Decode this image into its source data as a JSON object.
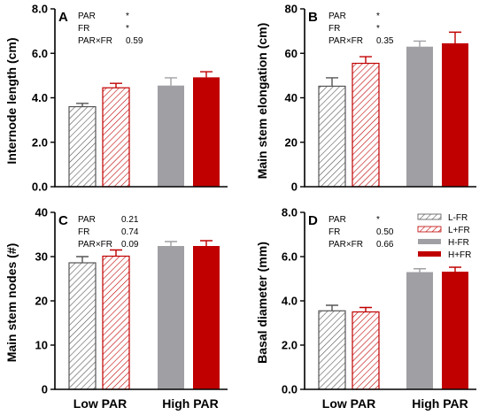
{
  "colors": {
    "L-FR": "#555555",
    "L+FR": "#c00000",
    "H-FR": "#a0a0a4",
    "H+FR": "#c00000"
  },
  "legend": {
    "placement": "top-right of panel D",
    "entries": [
      {
        "key": "L-FR",
        "label": "L-FR",
        "style": "hatched",
        "color": "#555555"
      },
      {
        "key": "L+FR",
        "label": "L+FR",
        "style": "hatched",
        "color": "#c00000"
      },
      {
        "key": "H-FR",
        "label": "H-FR",
        "style": "solid",
        "color": "#a0a0a4"
      },
      {
        "key": "H+FR",
        "label": "H+FR",
        "style": "solid",
        "color": "#c00000"
      }
    ]
  },
  "chart_data": [
    {
      "panel": "A",
      "type": "bar",
      "ylabel": "Internode length (cm)",
      "ylim": [
        0,
        8
      ],
      "yticks": [
        "0.0",
        "2.0",
        "4.0",
        "6.0",
        "8.0"
      ],
      "categories": [
        "Low PAR",
        "High PAR"
      ],
      "series": [
        {
          "key": "L-FR",
          "group": 0,
          "value": 3.6,
          "error": 0.15
        },
        {
          "key": "L+FR",
          "group": 0,
          "value": 4.45,
          "error": 0.2
        },
        {
          "key": "H-FR",
          "group": 1,
          "value": 4.55,
          "error": 0.35
        },
        {
          "key": "H+FR",
          "group": 1,
          "value": 4.92,
          "error": 0.25
        }
      ],
      "stats": [
        {
          "label": "PAR",
          "value": "*"
        },
        {
          "label": "FR",
          "value": "*"
        },
        {
          "label": "PAR×FR",
          "value": "0.59"
        }
      ]
    },
    {
      "panel": "B",
      "type": "bar",
      "ylabel": "Main stem elongation (cm)",
      "ylim": [
        0,
        80
      ],
      "yticks": [
        "0",
        "20",
        "40",
        "60",
        "80"
      ],
      "categories": [
        "Low PAR",
        "High PAR"
      ],
      "series": [
        {
          "key": "L-FR",
          "group": 0,
          "value": 45.2,
          "error": 3.8
        },
        {
          "key": "L+FR",
          "group": 0,
          "value": 55.5,
          "error": 3.0
        },
        {
          "key": "H-FR",
          "group": 1,
          "value": 63.0,
          "error": 2.5
        },
        {
          "key": "H+FR",
          "group": 1,
          "value": 64.5,
          "error": 5.0
        }
      ],
      "stats": [
        {
          "label": "PAR",
          "value": "*"
        },
        {
          "label": "FR",
          "value": "*"
        },
        {
          "label": "PAR×FR",
          "value": "0.35"
        }
      ]
    },
    {
      "panel": "C",
      "type": "bar",
      "ylabel": "Main stem nodes (#)",
      "ylim": [
        0,
        40
      ],
      "yticks": [
        "0",
        "10",
        "20",
        "30",
        "40"
      ],
      "categories": [
        "Low PAR",
        "High PAR"
      ],
      "series": [
        {
          "key": "L-FR",
          "group": 0,
          "value": 28.6,
          "error": 1.4
        },
        {
          "key": "L+FR",
          "group": 0,
          "value": 30.1,
          "error": 1.4
        },
        {
          "key": "H-FR",
          "group": 1,
          "value": 32.4,
          "error": 1.0
        },
        {
          "key": "H+FR",
          "group": 1,
          "value": 32.4,
          "error": 1.2
        }
      ],
      "stats": [
        {
          "label": "PAR",
          "value": "0.21"
        },
        {
          "label": "FR",
          "value": "0.74"
        },
        {
          "label": "PAR×FR",
          "value": "0.09"
        }
      ]
    },
    {
      "panel": "D",
      "type": "bar",
      "ylabel": "Basal diameter (mm)",
      "ylim": [
        0,
        8
      ],
      "yticks": [
        "0.0",
        "2.0",
        "4.0",
        "6.0",
        "8.0"
      ],
      "categories": [
        "Low PAR",
        "High PAR"
      ],
      "series": [
        {
          "key": "L-FR",
          "group": 0,
          "value": 3.55,
          "error": 0.25
        },
        {
          "key": "L+FR",
          "group": 0,
          "value": 3.5,
          "error": 0.2
        },
        {
          "key": "H-FR",
          "group": 1,
          "value": 5.3,
          "error": 0.15
        },
        {
          "key": "H+FR",
          "group": 1,
          "value": 5.32,
          "error": 0.2
        }
      ],
      "stats": [
        {
          "label": "PAR",
          "value": "*"
        },
        {
          "label": "FR",
          "value": "0.50"
        },
        {
          "label": "PAR×FR",
          "value": "0.66"
        }
      ]
    }
  ]
}
